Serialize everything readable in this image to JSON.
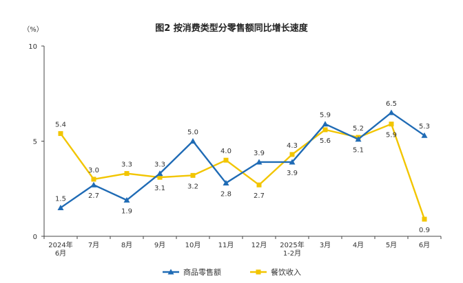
{
  "chart_data": {
    "type": "line",
    "title": "图2 按消费类型分零售额同比增长速度",
    "unit": "（%）",
    "ylim": [
      0,
      10
    ],
    "yticks": [
      "0",
      "5",
      "10"
    ],
    "categories": [
      [
        "2024年",
        "6月"
      ],
      [
        "7月"
      ],
      [
        "8月"
      ],
      [
        "9月"
      ],
      [
        "10月"
      ],
      [
        "11月"
      ],
      [
        "12月"
      ],
      [
        "2025年",
        "1-2月"
      ],
      [
        "3月"
      ],
      [
        "4月"
      ],
      [
        "5月"
      ],
      [
        "6月"
      ]
    ],
    "series": [
      {
        "name": "商品零售额",
        "color": "#1f6bb5",
        "marker": "triangle",
        "values": [
          1.5,
          2.7,
          1.9,
          3.3,
          5.0,
          2.8,
          3.9,
          3.9,
          5.9,
          5.1,
          6.5,
          5.3
        ],
        "labels": [
          "1.5",
          "2.7",
          "1.9",
          "3.3",
          "5.0",
          "2.8",
          "3.9",
          "3.9",
          "5.9",
          "5.1",
          "6.5",
          "5.3"
        ],
        "label_pos": [
          "above",
          "below",
          "below",
          "above",
          "above",
          "below",
          "above",
          "below",
          "above",
          "below",
          "above",
          "above"
        ]
      },
      {
        "name": "餐饮收入",
        "color": "#f2c500",
        "marker": "square",
        "values": [
          5.4,
          3.0,
          3.3,
          3.1,
          3.2,
          4.0,
          2.7,
          4.3,
          5.6,
          5.2,
          5.9,
          0.9
        ],
        "labels": [
          "5.4",
          "3.0",
          "3.3",
          "3.1",
          "3.2",
          "4.0",
          "2.7",
          "4.3",
          "5.6",
          "5.2",
          "5.9",
          "0.9"
        ],
        "label_pos": [
          "above",
          "above",
          "above",
          "below",
          "below",
          "above",
          "below",
          "above",
          "below",
          "above",
          "below",
          "below"
        ]
      }
    ],
    "legend_position": "bottom-center"
  }
}
